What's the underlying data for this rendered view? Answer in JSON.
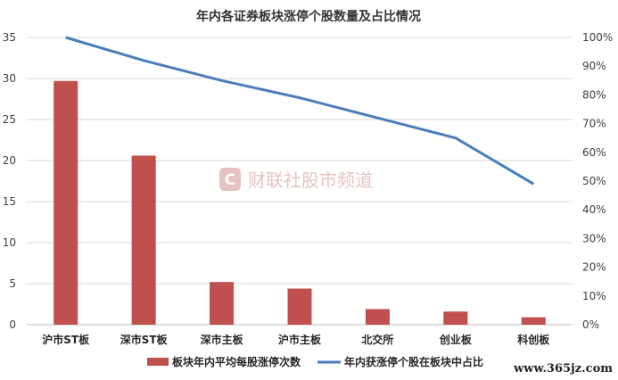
{
  "chart_data": {
    "type": "bar+line",
    "title": "年内各证券板块涨停个股数量及占比情况",
    "categories": [
      "沪市ST板",
      "深市ST板",
      "深市主板",
      "沪市主板",
      "北交所",
      "创业板",
      "科创板"
    ],
    "series": [
      {
        "name": "板块年内平均每股涨停次数",
        "type": "bar",
        "axis": "left",
        "color": "#c0504d",
        "values": [
          29.7,
          20.6,
          5.2,
          4.4,
          1.9,
          1.6,
          0.9
        ]
      },
      {
        "name": "年内获涨停个股在板块中占比",
        "type": "line",
        "axis": "right",
        "color": "#4a7ebb",
        "values": [
          100,
          92,
          85,
          79,
          72,
          65,
          49
        ]
      }
    ],
    "y_left": {
      "min": 0,
      "max": 35,
      "ticks": [
        "0",
        "5",
        "10",
        "15",
        "20",
        "25",
        "30",
        "35"
      ]
    },
    "y_right": {
      "min": 0,
      "max": 100,
      "ticks": [
        "0%",
        "10%",
        "20%",
        "30%",
        "40%",
        "50%",
        "60%",
        "70%",
        "80%",
        "90%",
        "100%"
      ]
    },
    "grid": true,
    "legend_position": "bottom"
  },
  "watermark": {
    "text": "财联社股市频道",
    "icon_letter": "C"
  },
  "site_label": "www.365jz.com"
}
